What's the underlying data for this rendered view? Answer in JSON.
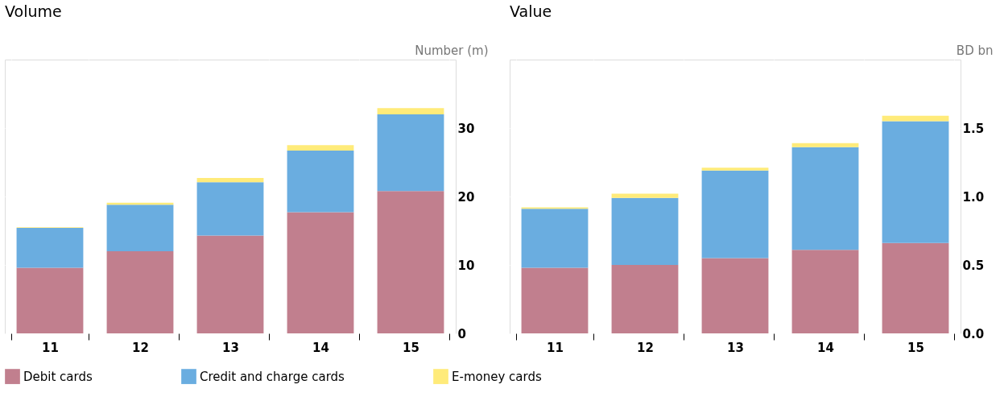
{
  "chart_data": [
    {
      "type": "bar",
      "title": "Volume",
      "ylabel": "Number (m)",
      "stacked": true,
      "categories": [
        "11",
        "12",
        "13",
        "14",
        "15"
      ],
      "ylim": [
        0,
        40
      ],
      "yticks": [
        0,
        10,
        20,
        30
      ],
      "grid": true,
      "legend": "bottom",
      "series": [
        {
          "name": "Debit cards",
          "color": "#c17f8e",
          "values": [
            9.6,
            12.0,
            14.3,
            17.7,
            20.8
          ]
        },
        {
          "name": "Credit and charge cards",
          "color": "#6aade0",
          "values": [
            5.8,
            6.8,
            7.8,
            9.0,
            11.2
          ]
        },
        {
          "name": "E-money cards",
          "color": "#ffeb7a",
          "values": [
            0.1,
            0.3,
            0.6,
            0.8,
            0.9
          ]
        }
      ]
    },
    {
      "type": "bar",
      "title": "Value",
      "ylabel": "BD bn",
      "stacked": true,
      "categories": [
        "11",
        "12",
        "13",
        "14",
        "15"
      ],
      "ylim": [
        0,
        2
      ],
      "yticks": [
        {
          "value": 0,
          "label": "0.0"
        },
        {
          "value": 0.5,
          "label": "0.5"
        },
        {
          "value": 1,
          "label": "1.0"
        },
        {
          "value": 1.5,
          "label": "1.5"
        }
      ],
      "grid": true,
      "series": [
        {
          "color": "#c17f8e",
          "values": [
            0.48,
            0.5,
            0.55,
            0.61,
            0.66
          ]
        },
        {
          "color": "#6aade0",
          "values": [
            0.43,
            0.49,
            0.64,
            0.75,
            0.89
          ]
        },
        {
          "color": "#ffeb7a",
          "values": [
            0.01,
            0.03,
            0.02,
            0.03,
            0.04
          ]
        }
      ]
    }
  ]
}
